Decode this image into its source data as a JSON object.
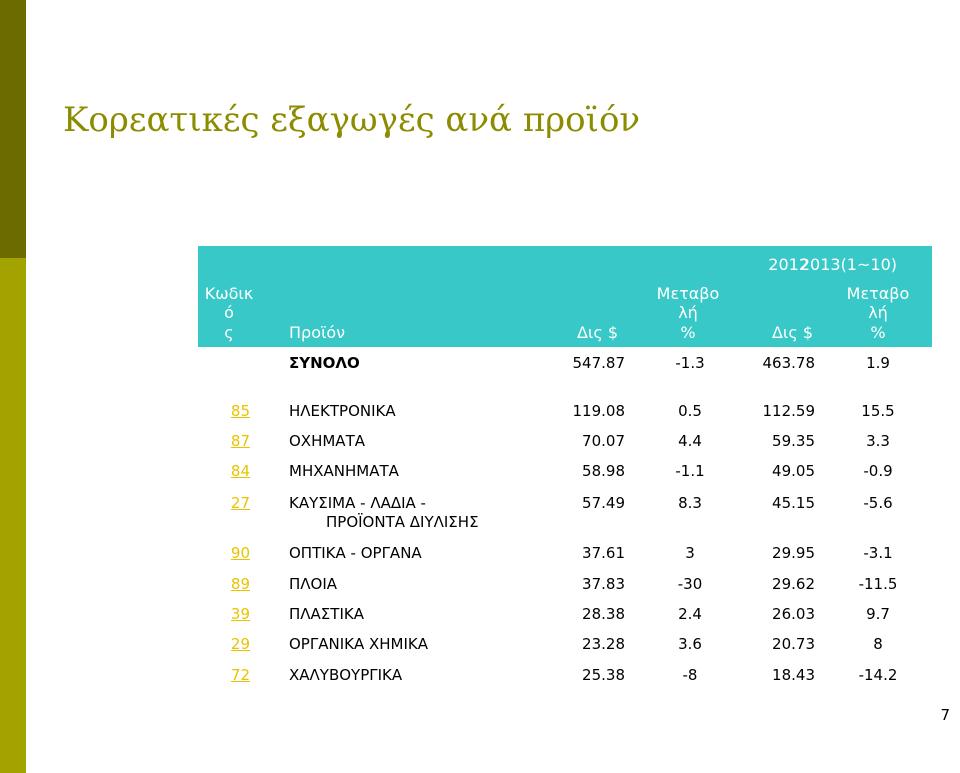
{
  "title": "Κορεατικές εξαγωγές ανά προϊόν",
  "page_number": "7",
  "header": {
    "year1": "2012",
    "year2": "2013(1~10)",
    "code_lines": [
      "Κωδικ",
      "ό",
      "ς"
    ],
    "product": "Προϊόν",
    "usd1": "Δις $",
    "change1_lines": [
      "Μεταβο",
      "λή",
      "%"
    ],
    "usd2": "Δις $",
    "change2_lines": [
      "Μεταβο",
      "λή",
      "%"
    ]
  },
  "total": {
    "label": "ΣΥΝΟΛΟ",
    "v2012": "547.87",
    "c2012": "-1.3",
    "v2013": "463.78",
    "c2013": "1.9"
  },
  "rows": [
    {
      "code": "85",
      "product": "ΗΛΕΚΤΡΟΝΙΚΑ",
      "product2": "",
      "v2012": "119.08",
      "c2012": "0.5",
      "v2013": "112.59",
      "c2013": "15.5"
    },
    {
      "code": "87",
      "product": "ΟΧΗΜΑΤΑ",
      "product2": "",
      "v2012": "70.07",
      "c2012": "4.4",
      "v2013": "59.35",
      "c2013": "3.3"
    },
    {
      "code": "84",
      "product": "ΜΗΧΑΝΗΜΑΤΑ",
      "product2": "",
      "v2012": "58.98",
      "c2012": "-1.1",
      "v2013": "49.05",
      "c2013": "-0.9"
    },
    {
      "code": "27",
      "product": "ΚΑΥΣΙΜΑ - ΛΑΔΙΑ -",
      "product2": "ΠΡΟΪΟΝΤΑ ΔΙΥΛΙΣΗΣ",
      "v2012": "57.49",
      "c2012": "8.3",
      "v2013": "45.15",
      "c2013": "-5.6"
    },
    {
      "code": "90",
      "product": "ΟΠΤΙΚΑ - ΟΡΓΑΝΑ",
      "product2": "",
      "v2012": "37.61",
      "c2012": "3",
      "v2013": "29.95",
      "c2013": "-3.1"
    },
    {
      "code": "89",
      "product": "ΠΛΟΙΑ",
      "product2": "",
      "v2012": "37.83",
      "c2012": "-30",
      "v2013": "29.62",
      "c2013": "-11.5"
    },
    {
      "code": "39",
      "product": "ΠΛΑΣΤΙΚΑ",
      "product2": "",
      "v2012": "28.38",
      "c2012": "2.4",
      "v2013": "26.03",
      "c2013": "9.7"
    },
    {
      "code": "29",
      "product": "ΟΡΓΑΝΙΚΑ ΧΗΜΙΚΑ",
      "product2": "",
      "v2012": "23.28",
      "c2012": "3.6",
      "v2013": "20.73",
      "c2013": "8"
    },
    {
      "code": "72",
      "product": "ΧΑΛΥΒΟΥΡΓΙΚΑ",
      "product2": "",
      "v2012": "25.38",
      "c2012": "-8",
      "v2013": "18.43",
      "c2013": "-14.2"
    }
  ]
}
